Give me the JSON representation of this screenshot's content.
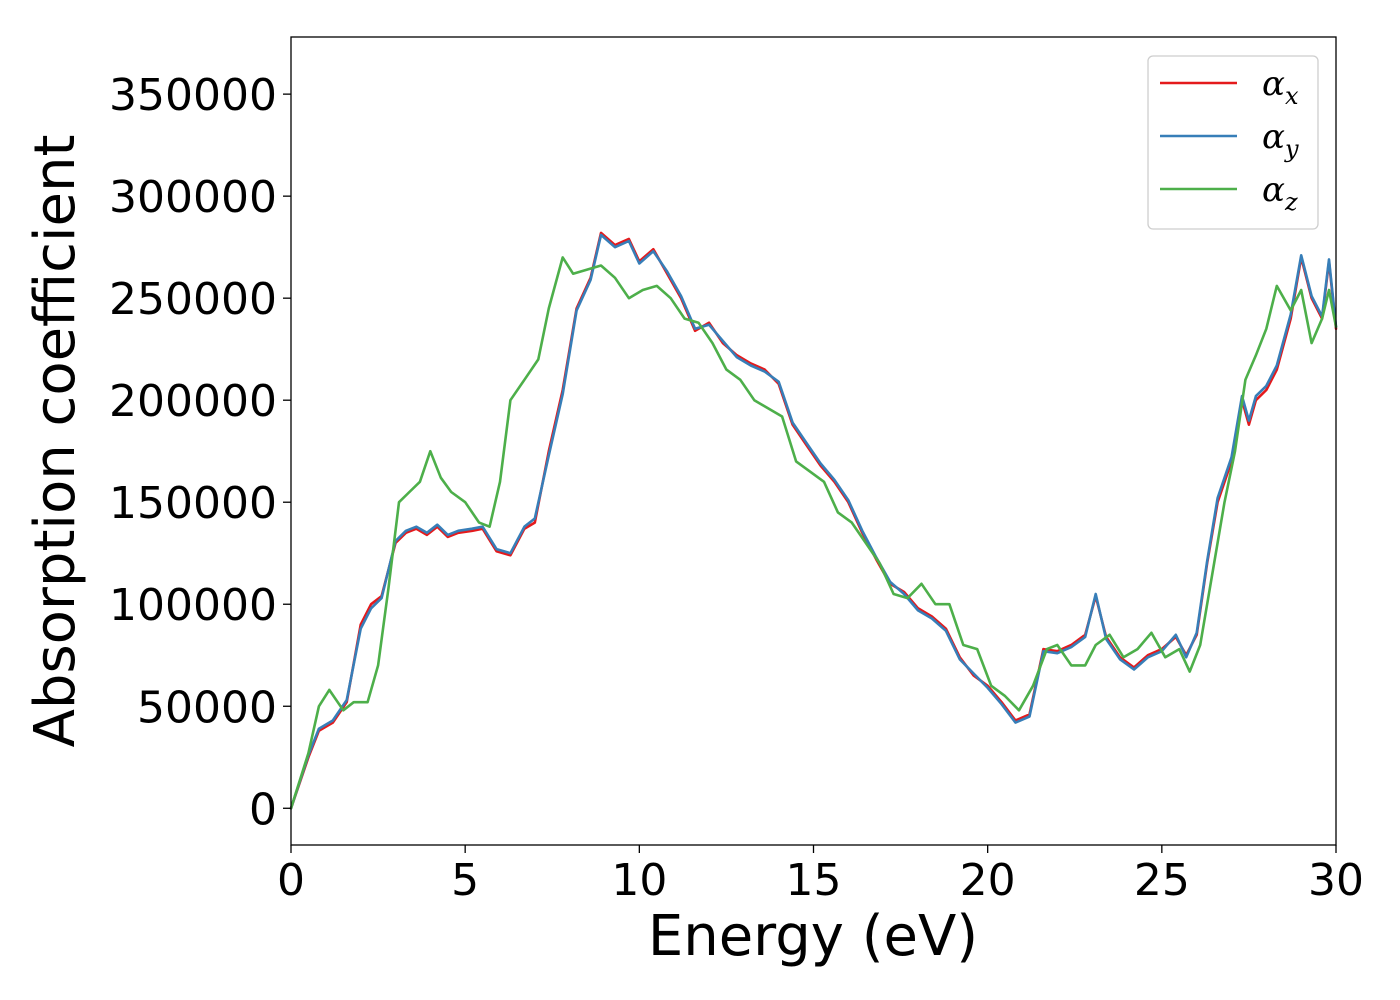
{
  "chart_data": {
    "type": "line",
    "xlabel": "Energy (eV)",
    "ylabel": "Absorption coefficient",
    "xlim": [
      0,
      30
    ],
    "ylim": [
      -18000,
      378000
    ],
    "xticks": [
      "0",
      "5",
      "10",
      "15",
      "20",
      "25",
      "30"
    ],
    "yticks": [
      "0",
      "50000",
      "100000",
      "150000",
      "200000",
      "250000",
      "300000",
      "350000"
    ],
    "grid": false,
    "legend_position": "top-right",
    "series": [
      {
        "name": "α",
        "subscript": "x",
        "color": "#e41a1c",
        "x": [
          0,
          0.5,
          0.8,
          1.2,
          1.6,
          2.0,
          2.3,
          2.6,
          3.0,
          3.3,
          3.6,
          3.9,
          4.2,
          4.5,
          4.8,
          5.2,
          5.5,
          5.9,
          6.3,
          6.7,
          7.0,
          7.4,
          7.8,
          8.2,
          8.6,
          8.9,
          9.3,
          9.7,
          10.0,
          10.4,
          10.8,
          11.2,
          11.6,
          12.0,
          12.4,
          12.8,
          13.2,
          13.6,
          14.0,
          14.4,
          14.8,
          15.2,
          15.6,
          16.0,
          16.4,
          16.8,
          17.2,
          17.6,
          18.0,
          18.4,
          18.8,
          19.2,
          19.6,
          20.0,
          20.4,
          20.8,
          21.2,
          21.6,
          22.0,
          22.4,
          22.8,
          23.1,
          23.4,
          23.8,
          24.2,
          24.6,
          25.0,
          25.4,
          25.7,
          26.0,
          26.3,
          26.6,
          27.0,
          27.3,
          27.5,
          27.7,
          28.0,
          28.3,
          28.7,
          29.0,
          29.3,
          29.6,
          29.8,
          30.0
        ],
        "y": [
          0,
          25000,
          38000,
          42000,
          52000,
          90000,
          100000,
          104000,
          130000,
          135000,
          137000,
          134000,
          138000,
          133000,
          135000,
          136000,
          137000,
          126000,
          124000,
          137000,
          140000,
          175000,
          205000,
          245000,
          260000,
          282000,
          276000,
          279000,
          268000,
          274000,
          262000,
          250000,
          234000,
          238000,
          228000,
          222000,
          218000,
          215000,
          208000,
          188000,
          178000,
          168000,
          160000,
          150000,
          135000,
          122000,
          110000,
          106000,
          98000,
          94000,
          88000,
          74000,
          65000,
          60000,
          52000,
          43000,
          46000,
          78000,
          77000,
          80000,
          85000,
          104000,
          84000,
          74000,
          69000,
          75000,
          78000,
          84000,
          75000,
          85000,
          120000,
          150000,
          170000,
          200000,
          188000,
          200000,
          205000,
          215000,
          240000,
          270000,
          250000,
          240000,
          268000,
          235000
        ]
      },
      {
        "name": "α",
        "subscript": "y",
        "color": "#377eb8",
        "x": [
          0,
          0.5,
          0.8,
          1.2,
          1.6,
          2.0,
          2.3,
          2.6,
          3.0,
          3.3,
          3.6,
          3.9,
          4.2,
          4.5,
          4.8,
          5.2,
          5.5,
          5.9,
          6.3,
          6.7,
          7.0,
          7.4,
          7.8,
          8.2,
          8.6,
          8.9,
          9.3,
          9.7,
          10.0,
          10.4,
          10.8,
          11.2,
          11.6,
          12.0,
          12.4,
          12.8,
          13.2,
          13.6,
          14.0,
          14.4,
          14.8,
          15.2,
          15.6,
          16.0,
          16.4,
          16.8,
          17.2,
          17.6,
          18.0,
          18.4,
          18.8,
          19.2,
          19.6,
          20.0,
          20.4,
          20.8,
          21.2,
          21.6,
          22.0,
          22.4,
          22.8,
          23.1,
          23.4,
          23.8,
          24.2,
          24.6,
          25.0,
          25.4,
          25.7,
          26.0,
          26.3,
          26.6,
          27.0,
          27.3,
          27.5,
          27.7,
          28.0,
          28.3,
          28.7,
          29.0,
          29.3,
          29.6,
          29.8,
          30.0
        ],
        "y": [
          0,
          26000,
          39000,
          43000,
          53000,
          88000,
          98000,
          103000,
          131000,
          136000,
          138000,
          135000,
          139000,
          134000,
          136000,
          137000,
          138000,
          127000,
          125000,
          138000,
          142000,
          173000,
          203000,
          244000,
          259000,
          281000,
          275000,
          278000,
          267000,
          273000,
          263000,
          251000,
          235000,
          237000,
          229000,
          221000,
          217000,
          214000,
          209000,
          189000,
          179000,
          169000,
          161000,
          151000,
          136000,
          123000,
          111000,
          105000,
          97000,
          93000,
          87000,
          73000,
          66000,
          59000,
          51000,
          42000,
          45000,
          77000,
          76000,
          79000,
          84000,
          105000,
          83000,
          73000,
          68000,
          74000,
          77000,
          85000,
          74000,
          86000,
          121000,
          152000,
          172000,
          202000,
          190000,
          202000,
          207000,
          217000,
          242000,
          271000,
          251000,
          241000,
          269000,
          236000
        ]
      },
      {
        "name": "α",
        "subscript": "z",
        "color": "#4daf4a",
        "x": [
          0,
          0.5,
          0.8,
          1.1,
          1.5,
          1.8,
          2.2,
          2.5,
          2.8,
          3.1,
          3.4,
          3.7,
          4.0,
          4.3,
          4.6,
          5.0,
          5.4,
          5.7,
          6.0,
          6.3,
          6.7,
          7.1,
          7.4,
          7.8,
          8.1,
          8.5,
          8.9,
          9.3,
          9.7,
          10.1,
          10.5,
          10.9,
          11.3,
          11.7,
          12.1,
          12.5,
          12.9,
          13.3,
          13.7,
          14.1,
          14.5,
          14.9,
          15.3,
          15.7,
          16.1,
          16.5,
          16.9,
          17.3,
          17.7,
          18.1,
          18.5,
          18.9,
          19.3,
          19.7,
          20.1,
          20.5,
          20.9,
          21.3,
          21.7,
          22.0,
          22.4,
          22.8,
          23.1,
          23.5,
          23.9,
          24.3,
          24.7,
          25.1,
          25.5,
          25.8,
          26.1,
          26.5,
          26.8,
          27.1,
          27.4,
          27.7,
          28.0,
          28.3,
          28.7,
          29.0,
          29.3,
          29.6,
          29.8,
          30.0
        ],
        "y": [
          0,
          27000,
          50000,
          58000,
          48000,
          52000,
          52000,
          70000,
          108000,
          150000,
          155000,
          160000,
          175000,
          162000,
          155000,
          150000,
          140000,
          138000,
          160000,
          200000,
          210000,
          220000,
          245000,
          270000,
          262000,
          264000,
          266000,
          260000,
          250000,
          254000,
          256000,
          250000,
          240000,
          238000,
          228000,
          215000,
          210000,
          200000,
          196000,
          192000,
          170000,
          165000,
          160000,
          145000,
          140000,
          130000,
          120000,
          105000,
          103000,
          110000,
          100000,
          100000,
          80000,
          78000,
          60000,
          55000,
          48000,
          60000,
          78000,
          80000,
          70000,
          70000,
          80000,
          85000,
          74000,
          78000,
          86000,
          74000,
          78000,
          67000,
          80000,
          120000,
          150000,
          175000,
          210000,
          222000,
          235000,
          256000,
          244000,
          254000,
          228000,
          240000,
          254000,
          236000
        ]
      }
    ]
  }
}
